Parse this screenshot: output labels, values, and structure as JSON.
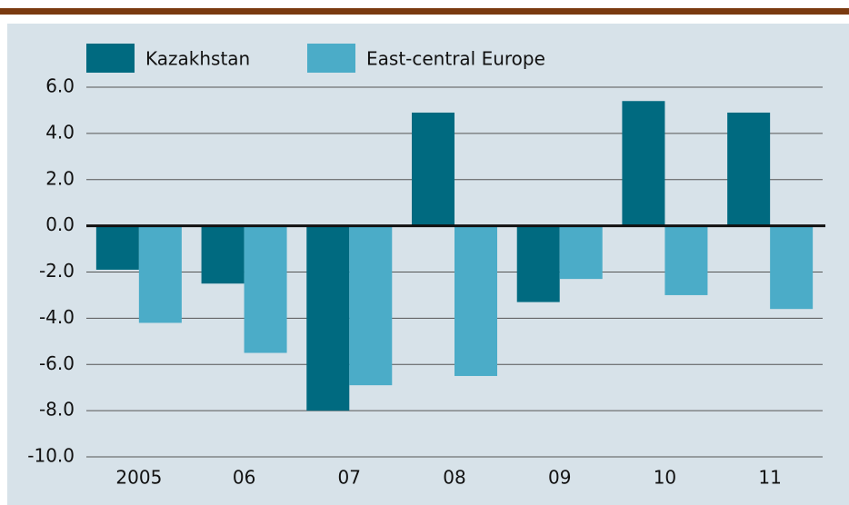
{
  "chart_data": {
    "type": "bar",
    "categories": [
      "2005",
      "06",
      "07",
      "08",
      "09",
      "10",
      "11"
    ],
    "series": [
      {
        "name": "Kazakhstan",
        "color": "#006a80",
        "values": [
          -1.9,
          -2.5,
          -8.0,
          4.9,
          -3.3,
          5.4,
          4.9
        ]
      },
      {
        "name": "East-central Europe",
        "color": "#4bacc8",
        "values": [
          -4.2,
          -5.5,
          -6.9,
          -6.5,
          -2.3,
          -3.0,
          -3.6
        ]
      }
    ],
    "ylim": [
      -10,
      6
    ],
    "yticks": [
      {
        "value": 6,
        "label": "6.0"
      },
      {
        "value": 4,
        "label": "4.0"
      },
      {
        "value": 2,
        "label": "2.0"
      },
      {
        "value": 0,
        "label": "0.0"
      },
      {
        "value": -2,
        "label": "-2.0"
      },
      {
        "value": -4,
        "label": "-4.0"
      },
      {
        "value": -6,
        "label": "-6.0"
      },
      {
        "value": -8,
        "label": "-8.0"
      },
      {
        "value": -10,
        "label": "-10.0"
      }
    ],
    "grid": true,
    "legend": "top"
  }
}
